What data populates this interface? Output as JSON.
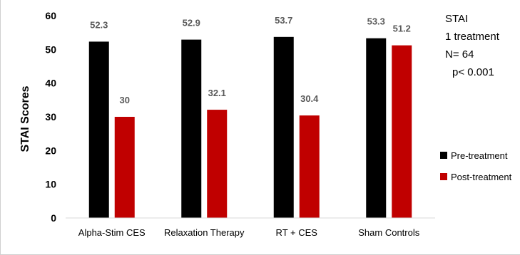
{
  "chart_data": {
    "type": "bar",
    "title": "",
    "xlabel": "",
    "ylabel": "STAI Scores",
    "ylim": [
      0,
      60
    ],
    "yticks": [
      0,
      10,
      20,
      30,
      40,
      50,
      60
    ],
    "grid": false,
    "legend_position": "right",
    "categories": [
      "Alpha-Stim CES",
      "Relaxation Therapy",
      "RT + CES",
      "Sham Controls"
    ],
    "series": [
      {
        "name": "Pre-treatment",
        "color": "#000000",
        "values": [
          52.3,
          52.9,
          53.7,
          53.3
        ]
      },
      {
        "name": "Post-treatment",
        "color": "#c00000",
        "values": [
          30,
          32.1,
          30.4,
          51.2
        ]
      }
    ],
    "data_labels": {
      "Pre-treatment": [
        "52.3",
        "52.9",
        "53.7",
        "53.3"
      ],
      "Post-treatment": [
        "30",
        "32.1",
        "30.4",
        "51.2"
      ]
    },
    "annotation": [
      "STAI",
      "1 treatment",
      "N= 64",
      "p< 0.001"
    ]
  }
}
